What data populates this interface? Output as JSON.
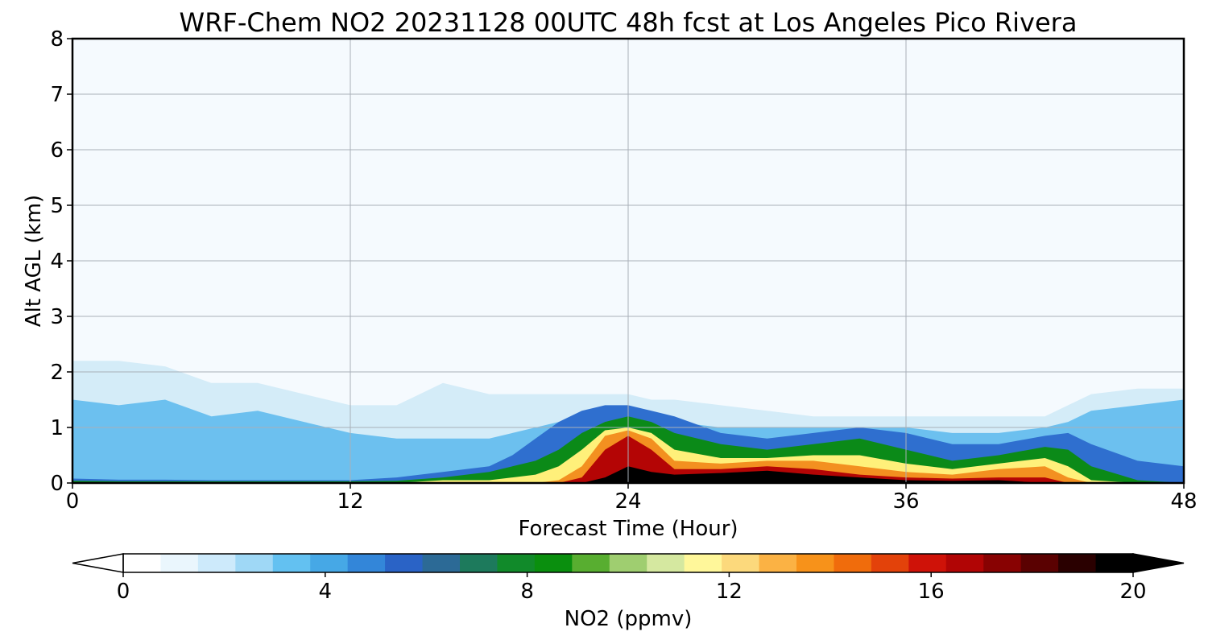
{
  "chart_data": {
    "type": "heatmap",
    "title": "WRF-Chem NO2  20231128 00UTC 48h fcst at Los Angeles Pico Rivera",
    "xlabel": "Forecast Time (Hour)",
    "ylabel": "Alt AGL (km)",
    "xlim": [
      0,
      48
    ],
    "ylim": [
      0,
      8
    ],
    "xticks": [
      "0",
      "12",
      "24",
      "36",
      "48"
    ],
    "yticks": [
      "0",
      "1",
      "2",
      "3",
      "4",
      "5",
      "6",
      "7",
      "8"
    ],
    "grid": true,
    "colorbar": {
      "label": "NO2  (ppmv)",
      "min": 0,
      "max": 20,
      "ticks": [
        "0",
        "4",
        "8",
        "12",
        "16",
        "20"
      ],
      "extend": "both",
      "orientation": "horizontal",
      "colors": [
        "#ffffff",
        "#eaf6fd",
        "#cdeafb",
        "#9fd8f6",
        "#63c1f1",
        "#46a8e6",
        "#3386d9",
        "#2a63c6",
        "#2c6a96",
        "#1d7a5c",
        "#118a2a",
        "#0a8f0e",
        "#58ae30",
        "#9fce70",
        "#d5e8a0",
        "#fff79a",
        "#fcd97c",
        "#fbb244",
        "#f7921a",
        "#f06c0c",
        "#e3420a",
        "#cf1208",
        "#b10505",
        "#880202",
        "#5a0101",
        "#2a0000",
        "#000000"
      ]
    },
    "x_hours": [
      0,
      2,
      4,
      6,
      8,
      10,
      12,
      14,
      16,
      18,
      19,
      20,
      21,
      22,
      23,
      24,
      25,
      26,
      28,
      30,
      32,
      34,
      36,
      38,
      40,
      42,
      43,
      44,
      46,
      48
    ],
    "contour_tops_km": [
      {
        "min_ppmv": 0.5,
        "tops": [
          2.2,
          2.2,
          2.1,
          1.8,
          1.8,
          1.6,
          1.4,
          1.4,
          1.8,
          1.6,
          1.6,
          1.6,
          1.6,
          1.6,
          1.6,
          1.6,
          1.5,
          1.5,
          1.4,
          1.3,
          1.2,
          1.2,
          1.2,
          1.2,
          1.2,
          1.2,
          1.4,
          1.6,
          1.7,
          1.7
        ]
      },
      {
        "min_ppmv": 2,
        "tops": [
          1.5,
          1.4,
          1.5,
          1.2,
          1.3,
          1.1,
          0.9,
          0.8,
          0.8,
          0.8,
          0.9,
          1.0,
          1.1,
          1.2,
          1.3,
          1.3,
          1.2,
          1.1,
          1.0,
          1.0,
          1.0,
          1.0,
          1.0,
          0.9,
          0.9,
          1.0,
          1.1,
          1.3,
          1.4,
          1.5
        ]
      },
      {
        "min_ppmv": 5,
        "tops": [
          0.08,
          0.06,
          0.06,
          0.05,
          0.05,
          0.05,
          0.05,
          0.1,
          0.2,
          0.3,
          0.5,
          0.8,
          1.1,
          1.3,
          1.4,
          1.4,
          1.3,
          1.2,
          0.9,
          0.8,
          0.9,
          1.0,
          0.9,
          0.7,
          0.7,
          0.85,
          0.9,
          0.7,
          0.4,
          0.3
        ]
      },
      {
        "min_ppmv": 8,
        "tops": [
          0.04,
          0.03,
          0.03,
          0.03,
          0.03,
          0.03,
          0.03,
          0.04,
          0.1,
          0.2,
          0.3,
          0.4,
          0.6,
          0.9,
          1.1,
          1.2,
          1.1,
          0.9,
          0.7,
          0.6,
          0.7,
          0.8,
          0.6,
          0.4,
          0.5,
          0.65,
          0.6,
          0.3,
          0.05,
          0.0
        ]
      },
      {
        "min_ppmv": 10,
        "tops": [
          0.0,
          0.0,
          0.0,
          0.0,
          0.0,
          0.0,
          0.0,
          0.0,
          0.05,
          0.05,
          0.1,
          0.15,
          0.3,
          0.6,
          0.95,
          1.0,
          0.9,
          0.6,
          0.45,
          0.45,
          0.5,
          0.5,
          0.35,
          0.25,
          0.35,
          0.45,
          0.3,
          0.05,
          0.0,
          0.0
        ]
      },
      {
        "min_ppmv": 13,
        "tops": [
          0.0,
          0.0,
          0.0,
          0.0,
          0.0,
          0.0,
          0.0,
          0.0,
          0.0,
          0.0,
          0.0,
          0.0,
          0.05,
          0.3,
          0.85,
          0.95,
          0.8,
          0.4,
          0.35,
          0.4,
          0.4,
          0.3,
          0.2,
          0.15,
          0.25,
          0.3,
          0.1,
          0.0,
          0.0,
          0.0
        ]
      },
      {
        "min_ppmv": 16,
        "tops": [
          0.0,
          0.0,
          0.0,
          0.0,
          0.0,
          0.0,
          0.0,
          0.0,
          0.0,
          0.0,
          0.0,
          0.0,
          0.0,
          0.1,
          0.6,
          0.85,
          0.6,
          0.25,
          0.25,
          0.3,
          0.25,
          0.15,
          0.1,
          0.08,
          0.1,
          0.1,
          0.0,
          0.0,
          0.0,
          0.0
        ]
      },
      {
        "min_ppmv": 19,
        "tops": [
          0.0,
          0.0,
          0.0,
          0.0,
          0.0,
          0.0,
          0.0,
          0.0,
          0.0,
          0.0,
          0.0,
          0.0,
          0.0,
          0.0,
          0.1,
          0.3,
          0.2,
          0.15,
          0.18,
          0.22,
          0.15,
          0.1,
          0.05,
          0.04,
          0.05,
          0.0,
          0.0,
          0.0,
          0.0,
          0.0
        ]
      }
    ],
    "contour_colors": [
      "#d4ecf8",
      "#6cc0ef",
      "#2f6fcf",
      "#0b8a18",
      "#fff07a",
      "#f39020",
      "#b40505",
      "#000000"
    ]
  }
}
